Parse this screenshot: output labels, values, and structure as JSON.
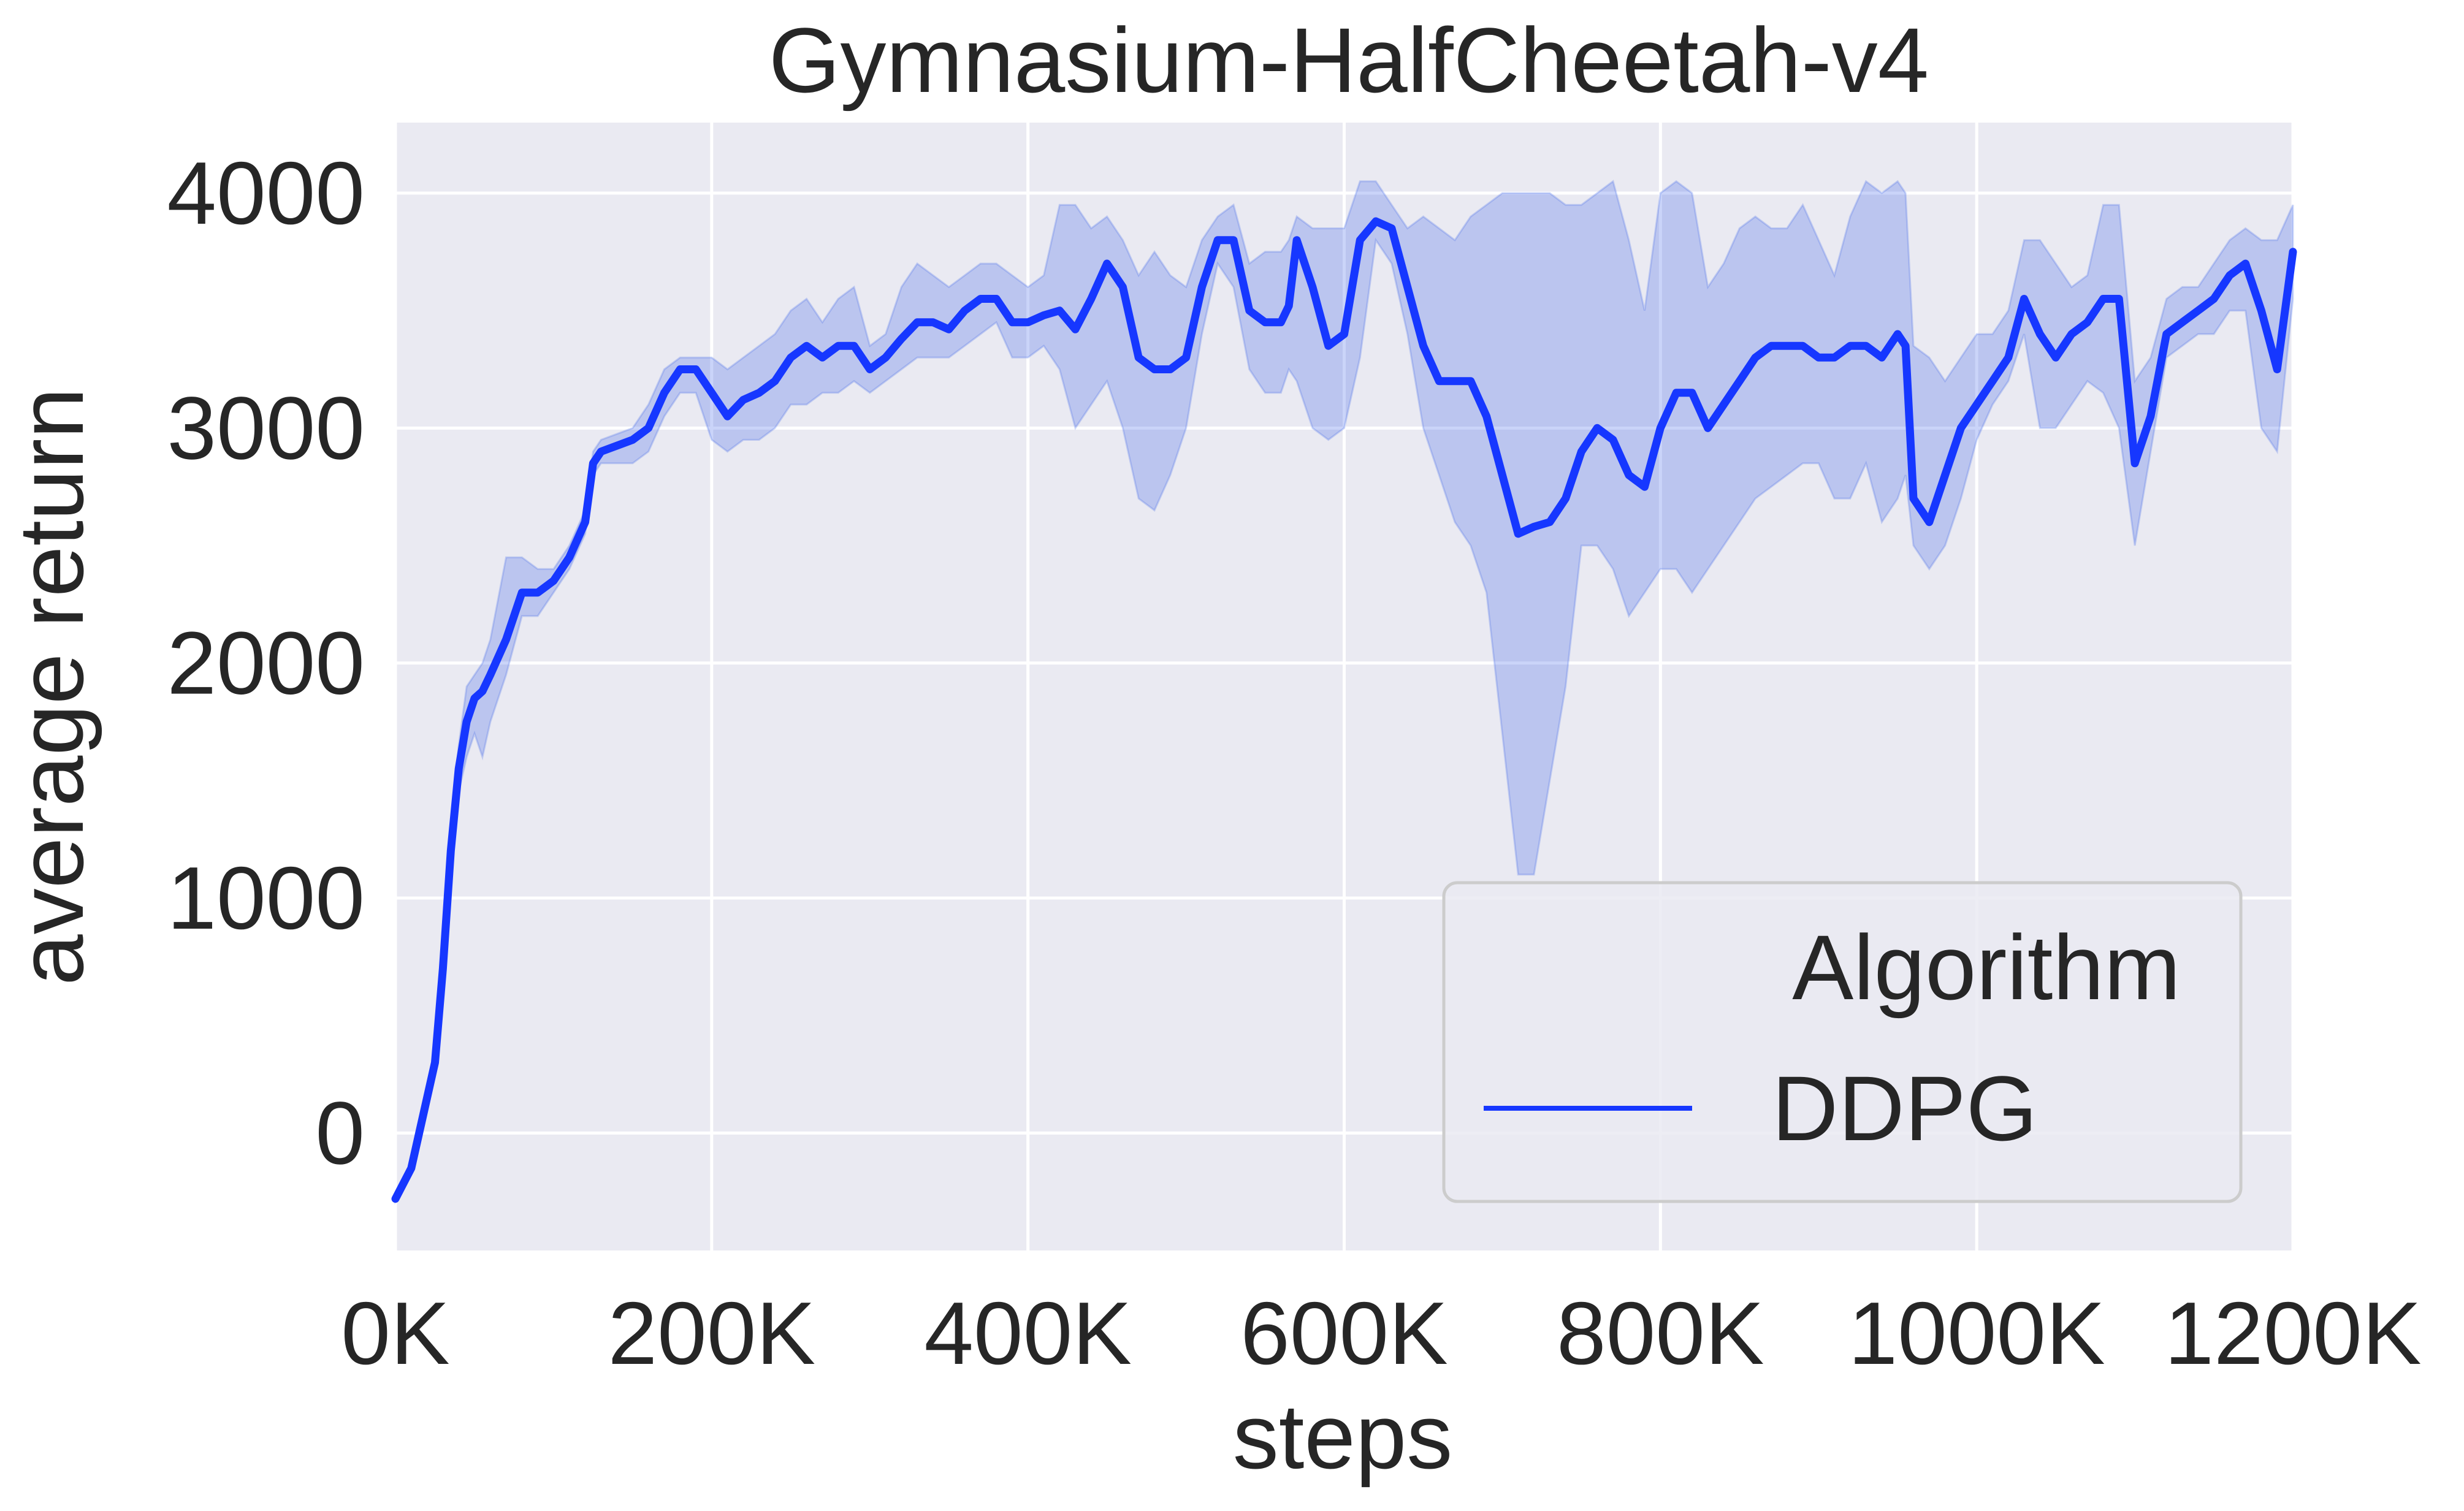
{
  "chart_data": {
    "type": "line",
    "title": "Gymnasium-HalfCheetah-v4",
    "xlabel": "steps",
    "ylabel": "average return",
    "xlim": [
      0,
      1200000
    ],
    "ylim": [
      -500,
      4300
    ],
    "xticks": [
      0,
      200000,
      400000,
      600000,
      800000,
      1000000,
      1200000
    ],
    "xtick_labels": [
      "0K",
      "200K",
      "400K",
      "600K",
      "800K",
      "1000K",
      "1200K"
    ],
    "yticks": [
      0,
      1000,
      2000,
      3000,
      4000
    ],
    "ytick_labels": [
      "0",
      "1000",
      "2000",
      "3000",
      "4000"
    ],
    "grid": true,
    "background": "#eaeaf2",
    "legend": {
      "title": "Algorithm",
      "placement": "lower-right"
    },
    "series": [
      {
        "name": "DDPG",
        "color": "#1637ff",
        "band_color": "#3f66e8",
        "x": [
          0,
          10000,
          20000,
          25000,
          30000,
          35000,
          40000,
          45000,
          50000,
          55000,
          60000,
          70000,
          80000,
          90000,
          100000,
          110000,
          120000,
          125000,
          130000,
          150000,
          160000,
          170000,
          180000,
          190000,
          200000,
          210000,
          220000,
          230000,
          240000,
          250000,
          260000,
          270000,
          280000,
          290000,
          300000,
          310000,
          320000,
          330000,
          340000,
          350000,
          360000,
          370000,
          380000,
          390000,
          400000,
          410000,
          420000,
          430000,
          440000,
          450000,
          460000,
          470000,
          480000,
          490000,
          500000,
          510000,
          520000,
          530000,
          540000,
          550000,
          560000,
          565000,
          570000,
          580000,
          590000,
          600000,
          610000,
          620000,
          630000,
          640000,
          650000,
          660000,
          670000,
          680000,
          690000,
          700000,
          710000,
          720000,
          730000,
          740000,
          750000,
          760000,
          770000,
          780000,
          790000,
          800000,
          810000,
          820000,
          830000,
          840000,
          850000,
          860000,
          870000,
          880000,
          890000,
          900000,
          910000,
          920000,
          930000,
          940000,
          950000,
          955000,
          960000,
          970000,
          980000,
          990000,
          1000000,
          1010000,
          1020000,
          1030000,
          1040000,
          1050000,
          1060000,
          1070000,
          1080000,
          1090000,
          1100000,
          1110000,
          1120000,
          1130000,
          1140000,
          1150000,
          1160000,
          1170000,
          1180000,
          1190000,
          1200000
        ],
        "mean": [
          -280,
          -150,
          150,
          300,
          700,
          1200,
          1550,
          1750,
          1850,
          1880,
          1950,
          2100,
          2300,
          2300,
          2350,
          2450,
          2600,
          2850,
          2900,
          2950,
          3000,
          3150,
          3250,
          3250,
          3150,
          3050,
          3120,
          3150,
          3200,
          3300,
          3350,
          3300,
          3350,
          3350,
          3250,
          3300,
          3380,
          3450,
          3450,
          3420,
          3500,
          3550,
          3550,
          3450,
          3450,
          3480,
          3500,
          3420,
          3550,
          3700,
          3600,
          3300,
          3250,
          3250,
          3300,
          3600,
          3800,
          3800,
          3500,
          3450,
          3450,
          3520,
          3800,
          3600,
          3350,
          3400,
          3800,
          3880,
          3850,
          3600,
          3350,
          3200,
          3200,
          3200,
          3050,
          2800,
          2550,
          2580,
          2600,
          2700,
          2900,
          3000,
          2950,
          2800,
          2750,
          3000,
          3150,
          3150,
          3000,
          3100,
          3200,
          3300,
          3350,
          3350,
          3350,
          3300,
          3300,
          3350,
          3350,
          3300,
          3400,
          3350,
          2700,
          2600,
          2800,
          3000,
          3100,
          3200,
          3300,
          3550,
          3400,
          3300,
          3400,
          3450,
          3550,
          3550,
          2850,
          3050,
          3400,
          3450,
          3500,
          3550,
          3650,
          3700,
          3500,
          3250,
          3750
        ],
        "lower": [
          -290,
          -170,
          120,
          250,
          600,
          1100,
          1450,
          1600,
          1700,
          1600,
          1750,
          1950,
          2200,
          2200,
          2300,
          2400,
          2550,
          2800,
          2850,
          2850,
          2900,
          3050,
          3150,
          3150,
          2950,
          2900,
          2950,
          2950,
          3000,
          3100,
          3100,
          3150,
          3150,
          3200,
          3150,
          3200,
          3250,
          3300,
          3300,
          3300,
          3350,
          3400,
          3450,
          3300,
          3300,
          3350,
          3250,
          3000,
          3100,
          3200,
          3000,
          2700,
          2650,
          2800,
          3000,
          3400,
          3700,
          3600,
          3250,
          3150,
          3150,
          3250,
          3200,
          3000,
          2950,
          3000,
          3300,
          3800,
          3700,
          3400,
          3000,
          2800,
          2600,
          2500,
          2300,
          1700,
          1100,
          1100,
          1500,
          1900,
          2500,
          2500,
          2400,
          2200,
          2300,
          2400,
          2400,
          2300,
          2400,
          2500,
          2600,
          2700,
          2750,
          2800,
          2850,
          2850,
          2700,
          2700,
          2850,
          2600,
          2700,
          2800,
          2500,
          2400,
          2500,
          2700,
          2950,
          3100,
          3200,
          3400,
          3000,
          3000,
          3100,
          3200,
          3150,
          3000,
          2500,
          2900,
          3300,
          3350,
          3400,
          3400,
          3500,
          3500,
          3000,
          2900,
          3550
        ],
        "upper": [
          -270,
          -130,
          180,
          350,
          800,
          1300,
          1650,
          1900,
          1950,
          2000,
          2100,
          2450,
          2450,
          2400,
          2400,
          2500,
          2650,
          2900,
          2950,
          3000,
          3100,
          3250,
          3300,
          3300,
          3300,
          3250,
          3300,
          3350,
          3400,
          3500,
          3550,
          3450,
          3550,
          3600,
          3350,
          3400,
          3600,
          3700,
          3650,
          3600,
          3650,
          3700,
          3700,
          3650,
          3600,
          3650,
          3950,
          3950,
          3850,
          3900,
          3800,
          3650,
          3750,
          3650,
          3600,
          3800,
          3900,
          3950,
          3700,
          3750,
          3750,
          3800,
          3900,
          3850,
          3850,
          3850,
          4050,
          4050,
          3950,
          3850,
          3900,
          3850,
          3800,
          3900,
          3950,
          4000,
          4000,
          4000,
          4000,
          3950,
          3950,
          4000,
          4050,
          3800,
          3500,
          4000,
          4050,
          4000,
          3600,
          3700,
          3850,
          3900,
          3850,
          3850,
          3950,
          3800,
          3650,
          3900,
          4050,
          4000,
          4050,
          4000,
          3350,
          3300,
          3200,
          3300,
          3400,
          3400,
          3500,
          3800,
          3800,
          3700,
          3600,
          3650,
          3950,
          3950,
          3200,
          3300,
          3550,
          3600,
          3600,
          3700,
          3800,
          3850,
          3800,
          3800,
          3950
        ]
      }
    ]
  }
}
